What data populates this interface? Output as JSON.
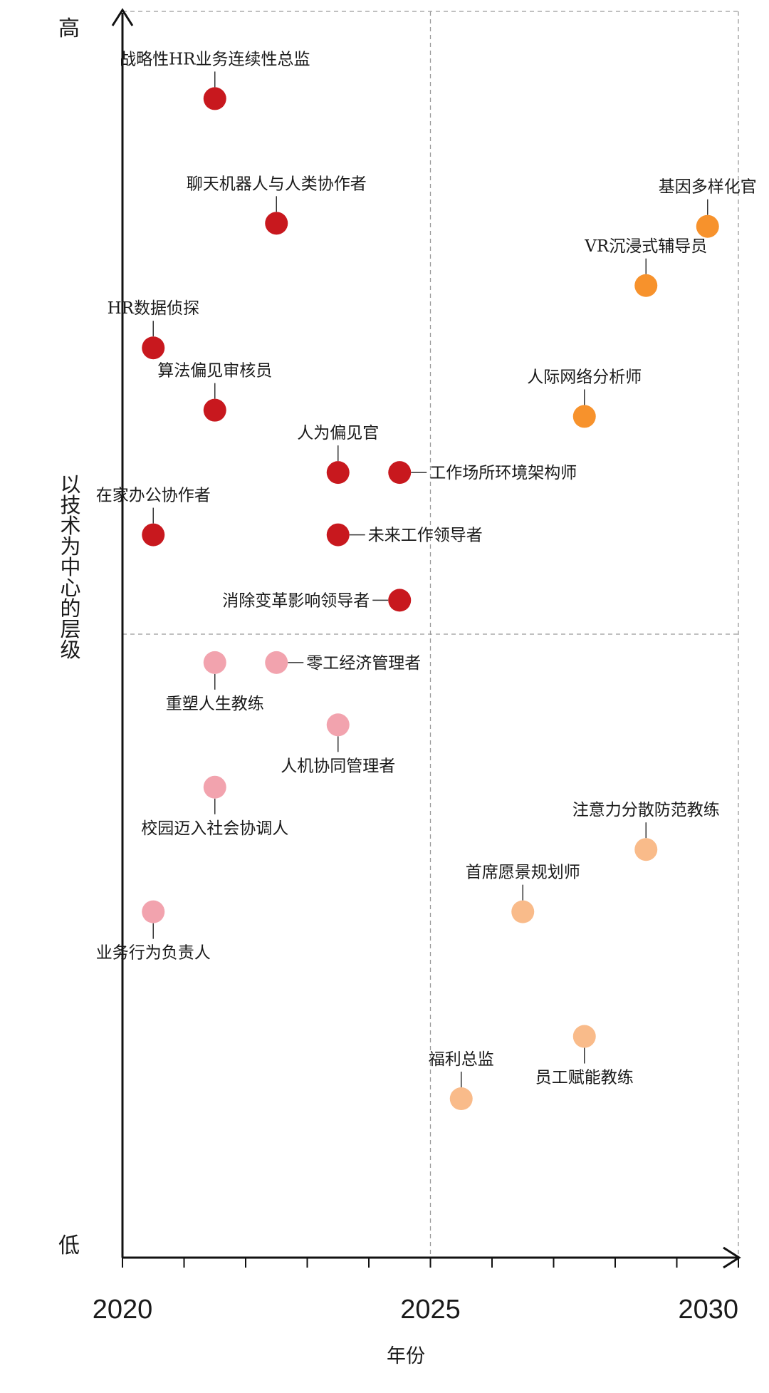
{
  "chart_data": {
    "type": "scatter",
    "title": "",
    "xlabel": "年份",
    "ylabel": "以技术为中心的层级",
    "y_high_label": "高",
    "y_low_label": "低",
    "xlim": [
      2020,
      2030
    ],
    "ylim": [
      0,
      20
    ],
    "x_tick_labels": [
      "2020",
      "2025",
      "2030"
    ],
    "x_minor_ticks": [
      2020,
      2021,
      2022,
      2023,
      2024,
      2025,
      2026,
      2027,
      2028,
      2029,
      2030
    ],
    "grid": "dashed lines at x=2025 and mid-level, dashed frame",
    "colors": {
      "dark_red": "#c8181e",
      "pink": "#f2a3ae",
      "orange": "#f7922c",
      "light_orange": "#f9bb8a"
    },
    "points": [
      {
        "label": "战略性HR业务连续性总监",
        "x": 2021.5,
        "y": 18.6,
        "color": "dark_red",
        "pos": "above"
      },
      {
        "label": "聊天机器人与人类协作者",
        "x": 2022.5,
        "y": 16.6,
        "color": "dark_red",
        "pos": "above"
      },
      {
        "label": "HR数据侦探",
        "x": 2020.5,
        "y": 14.6,
        "color": "dark_red",
        "pos": "above"
      },
      {
        "label": "算法偏见审核员",
        "x": 2021.5,
        "y": 13.6,
        "color": "dark_red",
        "pos": "above"
      },
      {
        "label": "人为偏见官",
        "x": 2023.5,
        "y": 12.6,
        "color": "dark_red",
        "pos": "above"
      },
      {
        "label": "工作场所环境架构师",
        "x": 2024.5,
        "y": 12.6,
        "color": "dark_red",
        "pos": "right"
      },
      {
        "label": "在家办公协作者",
        "x": 2020.5,
        "y": 11.6,
        "color": "dark_red",
        "pos": "above"
      },
      {
        "label": "未来工作领导者",
        "x": 2023.5,
        "y": 11.6,
        "color": "dark_red",
        "pos": "right"
      },
      {
        "label": "消除变革影响领导者",
        "x": 2024.5,
        "y": 10.55,
        "color": "dark_red",
        "pos": "left"
      },
      {
        "label": "基因多样化官",
        "x": 2029.5,
        "y": 16.55,
        "color": "orange",
        "pos": "above"
      },
      {
        "label": "VR沉浸式辅导员",
        "x": 2028.5,
        "y": 15.6,
        "color": "orange",
        "pos": "above"
      },
      {
        "label": "人际网络分析师",
        "x": 2027.5,
        "y": 13.5,
        "color": "orange",
        "pos": "above"
      },
      {
        "label": "重塑人生教练",
        "x": 2021.5,
        "y": 9.55,
        "color": "pink",
        "pos": "below"
      },
      {
        "label": "零工经济管理者",
        "x": 2022.5,
        "y": 9.55,
        "color": "pink",
        "pos": "right"
      },
      {
        "label": "人机协同管理者",
        "x": 2023.5,
        "y": 8.55,
        "color": "pink",
        "pos": "below"
      },
      {
        "label": "校园迈入社会协调人",
        "x": 2021.5,
        "y": 7.55,
        "color": "pink",
        "pos": "below"
      },
      {
        "label": "业务行为负责人",
        "x": 2020.5,
        "y": 5.55,
        "color": "pink",
        "pos": "below"
      },
      {
        "label": "注意力分散防范教练",
        "x": 2028.5,
        "y": 6.55,
        "color": "light_orange",
        "pos": "above"
      },
      {
        "label": "首席愿景规划师",
        "x": 2026.5,
        "y": 5.55,
        "color": "light_orange",
        "pos": "above"
      },
      {
        "label": "员工赋能教练",
        "x": 2027.5,
        "y": 3.55,
        "color": "light_orange",
        "pos": "below"
      },
      {
        "label": "福利总监",
        "x": 2025.5,
        "y": 2.55,
        "color": "light_orange",
        "pos": "above"
      }
    ]
  }
}
